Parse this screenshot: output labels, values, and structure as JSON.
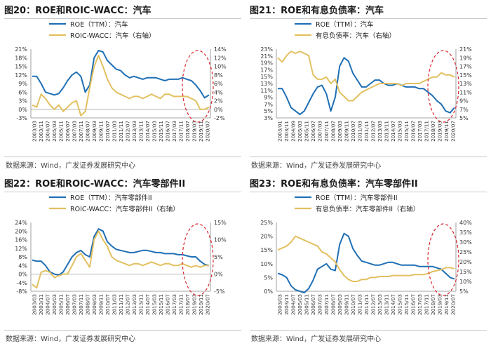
{
  "chart_data": [
    {
      "type": "line",
      "title": "图20：ROE和ROIC-WACC：汽车",
      "source": "数据来源：Wind，广发证券发展研究中心",
      "x_labels": [
        "2003/03",
        "2003/11",
        "2004/07",
        "2005/03",
        "2005/11",
        "2006/07",
        "2007/03",
        "2007/11",
        "2008/07",
        "2009/03",
        "2009/11",
        "2010/07",
        "2011/03",
        "2011/11",
        "2012/07",
        "2013/03",
        "2013/11",
        "2014/07",
        "2015/03",
        "2015/11",
        "2016/07",
        "2017/03",
        "2017/11",
        "2018/07",
        "2019/03",
        "2019/11",
        "2020/07"
      ],
      "left_axis": {
        "ticks": [
          "21%",
          "18%",
          "15%",
          "12%",
          "9%",
          "6%",
          "3%",
          "0%",
          "-3%"
        ],
        "min": -3,
        "max": 21
      },
      "right_axis": {
        "ticks": [
          "14%",
          "12%",
          "10%",
          "8%",
          "6%",
          "4%",
          "2%",
          "0%",
          "-2%"
        ],
        "min": -2,
        "max": 14
      },
      "series": [
        {
          "name": "ROE（TTM）：汽车",
          "color": "#1f6fb5",
          "axis": "left",
          "values": [
            11.5,
            11.5,
            9,
            6,
            5.5,
            5,
            5.5,
            7.5,
            10,
            12,
            13,
            11.5,
            6,
            8.5,
            18,
            20.5,
            20,
            17,
            15.5,
            14,
            13.5,
            12,
            11,
            11.5,
            11,
            10.5,
            11,
            11,
            11,
            10.5,
            10,
            10.5,
            10.5,
            10.5,
            11,
            10.5,
            10,
            8.5,
            6.5,
            4,
            5
          ]
        },
        {
          "name": "ROIC-WACC：汽车（右轴）",
          "color": "#e2c060",
          "axis": "right",
          "values": [
            1,
            0.5,
            3.5,
            2.5,
            1,
            0,
            1,
            -0.5,
            0.5,
            1.5,
            2,
            -1.5,
            -0.5,
            5,
            10,
            12.5,
            10,
            7,
            5,
            4,
            3.5,
            3,
            2.5,
            3,
            3,
            2.5,
            3,
            3.5,
            3,
            2.5,
            3.5,
            3.5,
            3,
            3,
            3,
            3,
            2.5,
            2,
            0,
            0,
            0.5
          ]
        }
      ],
      "highlight_position": "right-end"
    },
    {
      "type": "line",
      "title": "图21：ROE和有息负债率：汽车",
      "source": "数据来源：Wind，广发证券发展研究中心",
      "x_labels": [
        "2003/01",
        "2003/11",
        "2004/09",
        "2005/03",
        "2005/11",
        "2006/07",
        "2007/03",
        "2007/11",
        "2008/07",
        "2009/03",
        "2009/11",
        "2010/07",
        "2011/03",
        "2011/11",
        "2012/07",
        "2013/03",
        "2013/11",
        "2014/07",
        "2015/03",
        "2015/11",
        "2016/07",
        "2017/03",
        "2017/11",
        "2018/07",
        "2019/03",
        "2019/11",
        "2020/07"
      ],
      "left_axis": {
        "ticks": [
          "23%",
          "21%",
          "19%",
          "17%",
          "15%",
          "13%",
          "11%",
          "9%",
          "7%",
          "5%",
          "3%"
        ],
        "min": 3,
        "max": 23
      },
      "right_axis": {
        "ticks": [
          "21%",
          "19%",
          "17%",
          "15%",
          "13%",
          "11%",
          "9%",
          "7%",
          "5%"
        ],
        "min": 5,
        "max": 21
      },
      "series": [
        {
          "name": "ROE（TTM）：汽车",
          "color": "#1f6fb5",
          "axis": "left",
          "values": [
            11.5,
            11.5,
            9,
            6,
            5,
            4,
            5,
            7.5,
            10,
            12,
            12.5,
            10,
            5,
            9,
            18,
            20.5,
            19.5,
            16,
            14,
            12,
            12,
            13,
            14,
            14,
            13,
            12.5,
            12.5,
            13,
            12.5,
            12,
            12,
            12,
            11.5,
            11.5,
            10.5,
            9.5,
            8,
            7,
            5,
            4.5,
            6
          ]
        },
        {
          "name": "有息负债率：汽车（右轴）",
          "color": "#e2c060",
          "axis": "right",
          "values": [
            19,
            18,
            19.5,
            20.5,
            20,
            20.5,
            20,
            19.5,
            15,
            14,
            14,
            14.5,
            13,
            14,
            11,
            10,
            9,
            9,
            10,
            11,
            11.5,
            12,
            12.5,
            13,
            13,
            13,
            13,
            13,
            12.5,
            13,
            13,
            13,
            13,
            13.5,
            14,
            14.5,
            14.5,
            15.5,
            15,
            15,
            14.5
          ]
        }
      ],
      "highlight_position": "right-end"
    },
    {
      "type": "line",
      "title": "图22：ROE和ROIC-WACC：汽车零部件II",
      "source": "数据来源：Wind，广发证券发展研究中心",
      "x_labels": [
        "2003/03",
        "2003/11",
        "2004/07",
        "2005/03",
        "2005/11",
        "2006/07",
        "2007/03",
        "2007/11",
        "2008/07",
        "2009/03",
        "2009/11",
        "2010/07",
        "2011/03",
        "2011/11",
        "2012/07",
        "2013/03",
        "2013/11",
        "2014/07",
        "2015/03",
        "2015/11",
        "2016/07",
        "2017/03",
        "2017/11",
        "2018/07",
        "2019/03",
        "2019/11",
        "2020/07"
      ],
      "left_axis": {
        "ticks": [
          "24%",
          "20%",
          "16%",
          "12%",
          "8%",
          "4%",
          "0%",
          "-4%",
          "-8%"
        ],
        "min": -8,
        "max": 24
      },
      "right_axis": {
        "ticks": [
          "15%",
          "10%",
          "5%",
          "0%",
          "-5%"
        ],
        "min": -5,
        "max": 15
      },
      "series": [
        {
          "name": "ROE（TTM）：汽车零部件II",
          "color": "#1f6fb5",
          "axis": "left",
          "values": [
            6.5,
            6,
            6,
            4,
            1,
            0,
            -0.5,
            1,
            4.5,
            8,
            10,
            11,
            9,
            8,
            17.5,
            21,
            20,
            15,
            13,
            11.5,
            11,
            10.5,
            10,
            10,
            10.5,
            11,
            11,
            10.5,
            10,
            10,
            9.5,
            9.5,
            9.5,
            9,
            9,
            8.5,
            8,
            8,
            6,
            4.5,
            4
          ]
        },
        {
          "name": "ROIC-WACC：汽车零部件II（右轴）",
          "color": "#e2c060",
          "axis": "right",
          "values": [
            -3,
            -4,
            0.5,
            1,
            0.5,
            -1,
            -0.5,
            0,
            0,
            2.5,
            5,
            6,
            4,
            2,
            10,
            12.5,
            10,
            8,
            5,
            4,
            3.5,
            3,
            2.5,
            3,
            3,
            2.5,
            3,
            3.5,
            3,
            2.5,
            3,
            3,
            2.5,
            2.5,
            3,
            2.5,
            2,
            2.5,
            2,
            2.5,
            2.5
          ]
        }
      ],
      "highlight_position": "right-end"
    },
    {
      "type": "line",
      "title": "图23：ROE和有息负债率：汽车零部件II",
      "source": "数据来源：Wind，广发证券发展研究中心",
      "x_labels": [
        "2003/03",
        "2003/11",
        "2004/07",
        "2005/03",
        "2005/11",
        "2006/07",
        "2007/03",
        "2007/11",
        "2008/07",
        "2009/03",
        "2009/11",
        "2010/07",
        "2011/03",
        "2011/11",
        "2012/07",
        "2013/03",
        "2013/11",
        "2014/07",
        "2015/03",
        "2015/11",
        "2016/07",
        "2017/03",
        "2017/11",
        "2018/07",
        "2019/03",
        "2019/11",
        "2020/07"
      ],
      "left_axis": {
        "ticks": [
          "25%",
          "20%",
          "15%",
          "10%",
          "5%",
          "0%"
        ],
        "min": 0,
        "max": 25
      },
      "right_axis": {
        "ticks": [
          "40%",
          "35%",
          "30%",
          "25%",
          "20%",
          "15%",
          "10%",
          "5%"
        ],
        "min": 5,
        "max": 40
      },
      "series": [
        {
          "name": "ROE（TTM）：汽车零部件II",
          "color": "#1f6fb5",
          "axis": "left",
          "values": [
            6.5,
            6,
            5,
            2,
            0.5,
            0,
            -0.5,
            1,
            4,
            8,
            9,
            10,
            8,
            7.5,
            17,
            21,
            20,
            15.5,
            13,
            11,
            10.5,
            10,
            9.5,
            9.5,
            10,
            10.5,
            10.5,
            10,
            9.5,
            9.5,
            9.5,
            9.5,
            9,
            9,
            9,
            9,
            8.5,
            8,
            6.5,
            5,
            4.5
          ]
        },
        {
          "name": "有息负债率：汽车零部件II（右轴）",
          "color": "#e2c060",
          "axis": "right",
          "values": [
            26,
            27,
            28,
            30,
            33,
            32,
            31,
            30,
            29,
            28,
            25,
            24,
            22,
            20,
            16,
            13,
            11,
            10,
            10,
            11,
            11,
            12,
            12,
            12.5,
            12.5,
            12.5,
            13,
            13,
            13,
            13,
            13,
            13.5,
            13.5,
            13.5,
            14,
            15,
            15.5,
            16,
            17,
            17,
            16.5
          ]
        }
      ],
      "highlight_position": "right-end"
    }
  ]
}
